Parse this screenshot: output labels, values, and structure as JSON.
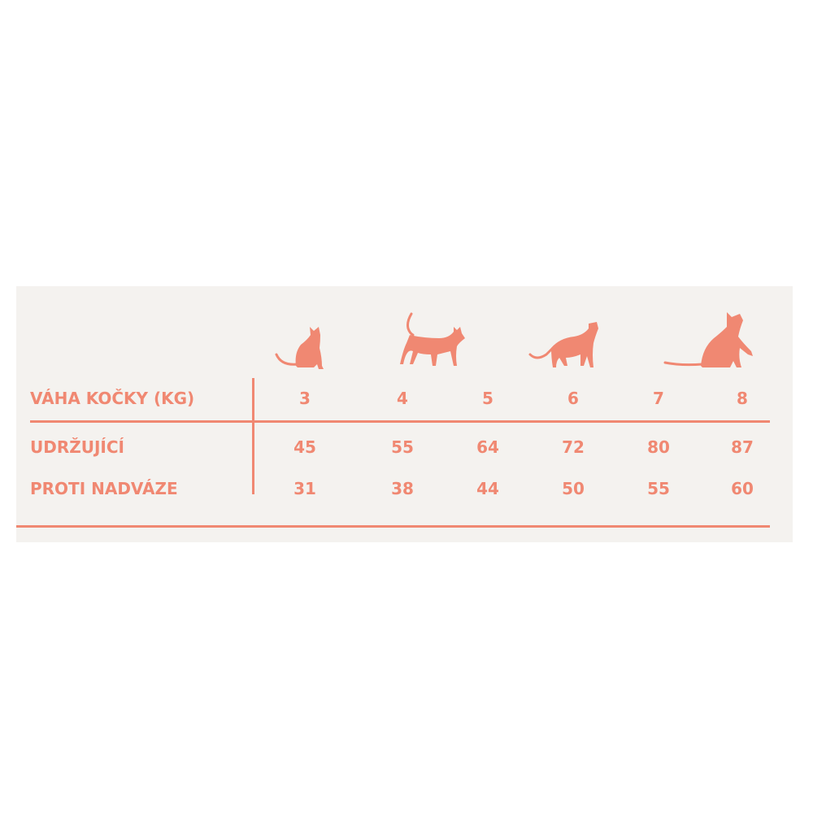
{
  "colors": {
    "accent": "#f08872",
    "panel_background": "#f4f2ef"
  },
  "table": {
    "header_label": "VÁHA KOČKY (KG)",
    "weights": [
      "3",
      "4",
      "5",
      "6",
      "7",
      "8"
    ],
    "rows": [
      {
        "label": "UDRŽUJÍCÍ",
        "values": [
          "45",
          "55",
          "64",
          "72",
          "80",
          "87"
        ]
      },
      {
        "label": "PROTI NADVÁZE",
        "values": [
          "31",
          "38",
          "44",
          "50",
          "55",
          "60"
        ]
      }
    ]
  },
  "icons": [
    "cat-sitting-icon",
    "cat-walking-icon",
    "cat-stretching-icon",
    "cat-sitting-large-icon"
  ]
}
